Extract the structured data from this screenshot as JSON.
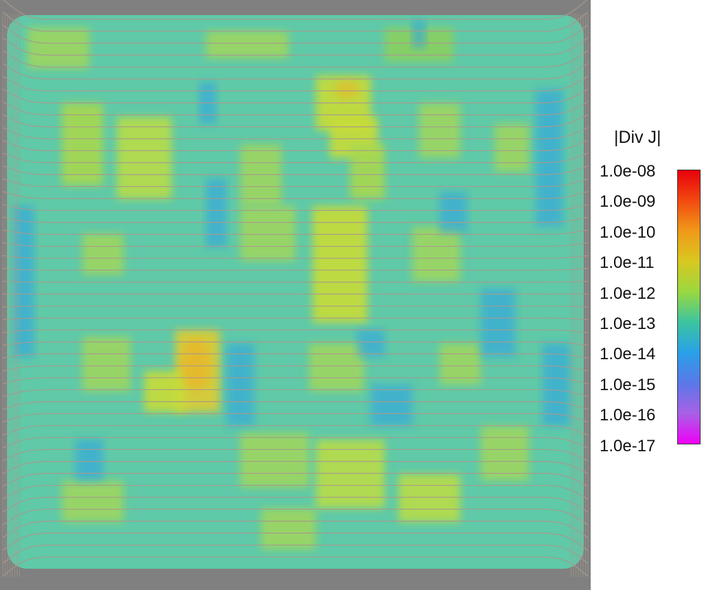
{
  "colorbar": {
    "title": "|Div J|",
    "scale": "log",
    "labels": [
      "1.0e-08",
      "1.0e-09",
      "1.0e-10",
      "1.0e-11",
      "1.0e-12",
      "1.0e-13",
      "1.0e-14",
      "1.0e-15",
      "1.0e-16",
      "1.0e-17"
    ],
    "color_stops": [
      "#e8000c",
      "#f24a10",
      "#f09a18",
      "#d8c820",
      "#9ad840",
      "#3cc4a0",
      "#2aa0e8",
      "#5a78e8",
      "#a860e6",
      "#f000f8"
    ]
  },
  "colors": {
    "frame": "#808080",
    "background_field": "#5fc9a8",
    "streamline": "#a79a8c"
  }
}
